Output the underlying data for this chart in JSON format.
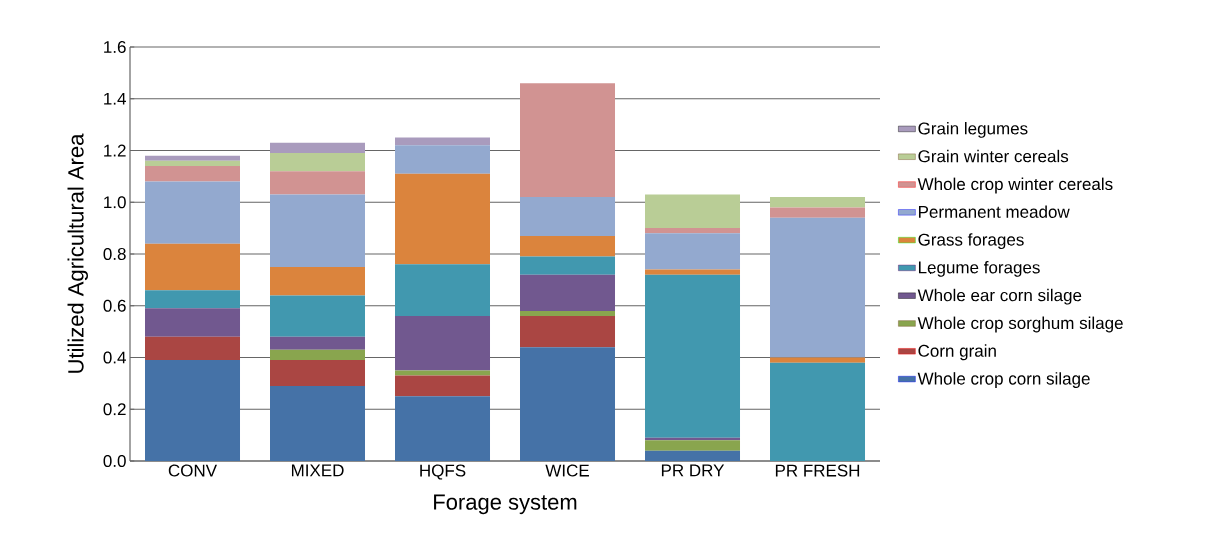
{
  "chart_data": {
    "type": "bar",
    "stacked": true,
    "xlabel": "Forage system",
    "ylabel": "Utilized Agricultural Area",
    "categories": [
      "CONV",
      "MIXED",
      "HQFS",
      "WICE",
      "PR DRY",
      "PR FRESH"
    ],
    "ylim": [
      0,
      1.6
    ],
    "yticks": [
      {
        "value": 0,
        "label": "0.0"
      },
      {
        "value": 0.2,
        "label": "0.2"
      },
      {
        "value": 0.4,
        "label": "0.4"
      },
      {
        "value": 0.6,
        "label": "0.6"
      },
      {
        "value": 0.8,
        "label": "0.8"
      },
      {
        "value": 1,
        "label": "1.0"
      },
      {
        "value": 1.2,
        "label": "1.2"
      },
      {
        "value": 1.4,
        "label": "1.4"
      },
      {
        "value": 1.6,
        "label": "1.6"
      }
    ],
    "grid": "y",
    "legend": "right",
    "series": [
      {
        "name": "Whole crop corn silage",
        "color": "#4572a7",
        "values": [
          0.39,
          0.29,
          0.25,
          0.44,
          0.04,
          0
        ]
      },
      {
        "name": "Corn grain",
        "color": "#aa4643",
        "values": [
          0.09,
          0.1,
          0.08,
          0.12,
          0,
          0
        ]
      },
      {
        "name": "Whole crop sorghum silage",
        "color": "#89a54e",
        "values": [
          0,
          0.04,
          0.02,
          0.02,
          0.04,
          0
        ]
      },
      {
        "name": "Whole ear corn silage",
        "color": "#71588f",
        "values": [
          0.11,
          0.05,
          0.21,
          0.14,
          0.01,
          0
        ]
      },
      {
        "name": "Legume forages",
        "color": "#4198af",
        "values": [
          0.07,
          0.16,
          0.2,
          0.07,
          0.63,
          0.38
        ]
      },
      {
        "name": "Grass forages",
        "color": "#db843d",
        "values": [
          0.18,
          0.11,
          0.35,
          0.08,
          0.02,
          0.02
        ]
      },
      {
        "name": "Permanent meadow",
        "color": "#93a9cf",
        "values": [
          0.24,
          0.28,
          0.11,
          0.15,
          0.14,
          0.54
        ]
      },
      {
        "name": "Whole crop winter cereals",
        "color": "#d19392",
        "values": [
          0.06,
          0.09,
          0,
          0.44,
          0.02,
          0.04
        ]
      },
      {
        "name": "Grain winter cereals",
        "color": "#b9cd96",
        "values": [
          0.02,
          0.07,
          0,
          0,
          0.13,
          0.04
        ]
      },
      {
        "name": "Grain legumes",
        "color": "#a99bbd",
        "values": [
          0.02,
          0.04,
          0.03,
          0,
          0,
          0
        ]
      }
    ]
  }
}
